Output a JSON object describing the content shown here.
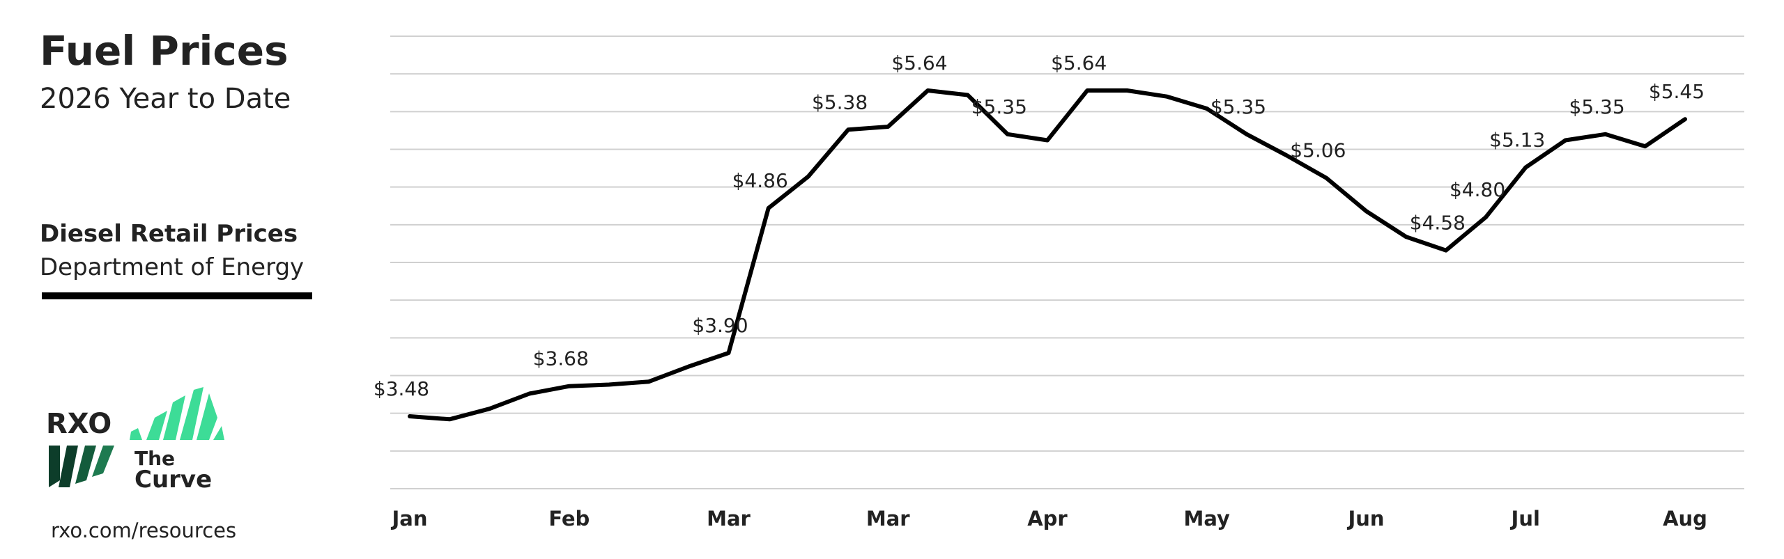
{
  "chart_data": {
    "type": "line",
    "title": "Fuel Prices",
    "subtitle": "2026 Year to Date",
    "series_title": "Diesel Retail Prices",
    "source": "Department of Energy",
    "categories": [
      "Jan",
      null,
      null,
      null,
      "Feb",
      null,
      null,
      null,
      "Mar",
      null,
      null,
      null,
      "Mar",
      null,
      null,
      null,
      "Apr",
      null,
      null,
      null,
      "May",
      null,
      null,
      null,
      "Jun",
      null,
      null,
      null,
      "Jul",
      null,
      null,
      null,
      "Aug"
    ],
    "values": [
      3.48,
      3.46,
      3.53,
      3.63,
      3.68,
      3.69,
      3.71,
      3.81,
      3.9,
      4.86,
      5.07,
      5.38,
      5.4,
      5.64,
      5.61,
      5.35,
      5.31,
      5.64,
      5.64,
      5.6,
      5.52,
      5.35,
      5.21,
      5.06,
      4.84,
      4.67,
      4.58,
      4.8,
      5.13,
      5.31,
      5.35,
      5.27,
      5.45
    ],
    "value_labels": [
      "$3.48",
      null,
      null,
      null,
      "$3.68",
      null,
      null,
      null,
      "$3.90",
      "$4.86",
      null,
      "$5.38",
      null,
      "$5.64",
      null,
      "$5.35",
      null,
      "$5.64",
      null,
      null,
      null,
      "$5.35",
      null,
      "$5.06",
      null,
      null,
      "$4.58",
      "$4.80",
      "$5.13",
      null,
      "$5.35",
      null,
      "$5.45"
    ],
    "color": "#000000",
    "ylim": [
      3.0,
      6.0
    ],
    "yticks": [
      3.0,
      3.25,
      3.5,
      3.75,
      4.0,
      4.25,
      4.5,
      4.75,
      5.0,
      5.25,
      5.5,
      5.75,
      6.0
    ],
    "grid": true
  },
  "branding": {
    "logo": "RXO",
    "product_line1": "The",
    "product_line2": "Curve",
    "url": "rxo.com/resources"
  }
}
